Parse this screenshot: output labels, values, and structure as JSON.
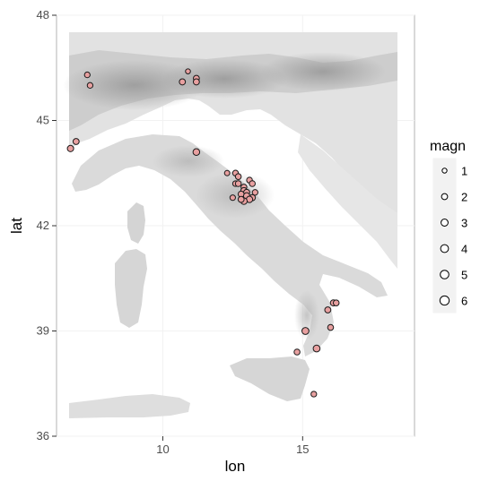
{
  "chart_data": {
    "type": "scatter",
    "title": "",
    "xlabel": "lon",
    "ylabel": "lat",
    "xlim": [
      6.2,
      19.0
    ],
    "ylim": [
      36.0,
      48.0
    ],
    "x_ticks": [
      10,
      15
    ],
    "y_ticks": [
      36,
      39,
      42,
      45,
      48
    ],
    "grid": true,
    "background": "shaded relief basemap of Italy",
    "point_stroke_color": "#1a1a1a",
    "point_fill_color": "#e8a0a0",
    "size_legend": {
      "title": "magn",
      "position": "right",
      "levels": [
        1,
        2,
        3,
        4,
        5,
        6
      ]
    },
    "points": [
      {
        "lon": 7.3,
        "lat": 46.3,
        "magn": 1.6
      },
      {
        "lon": 7.4,
        "lat": 46.0,
        "magn": 1.6
      },
      {
        "lon": 6.7,
        "lat": 44.2,
        "magn": 2.2
      },
      {
        "lon": 6.9,
        "lat": 44.4,
        "magn": 2.0
      },
      {
        "lon": 10.7,
        "lat": 46.1,
        "magn": 2.0
      },
      {
        "lon": 10.9,
        "lat": 46.4,
        "magn": 1.1
      },
      {
        "lon": 11.2,
        "lat": 46.2,
        "magn": 1.9
      },
      {
        "lon": 11.2,
        "lat": 46.1,
        "magn": 2.0
      },
      {
        "lon": 11.2,
        "lat": 44.1,
        "magn": 2.6
      },
      {
        "lon": 12.3,
        "lat": 43.5,
        "magn": 1.3
      },
      {
        "lon": 12.6,
        "lat": 43.5,
        "magn": 1.7
      },
      {
        "lon": 12.7,
        "lat": 43.4,
        "magn": 1.8
      },
      {
        "lon": 12.6,
        "lat": 43.2,
        "magn": 1.6
      },
      {
        "lon": 12.7,
        "lat": 43.2,
        "magn": 1.8
      },
      {
        "lon": 12.9,
        "lat": 43.1,
        "magn": 1.8
      },
      {
        "lon": 13.1,
        "lat": 43.3,
        "magn": 1.7
      },
      {
        "lon": 13.2,
        "lat": 43.2,
        "magn": 1.8
      },
      {
        "lon": 12.9,
        "lat": 43.0,
        "magn": 2.1
      },
      {
        "lon": 13.0,
        "lat": 42.95,
        "magn": 2.0
      },
      {
        "lon": 12.8,
        "lat": 42.9,
        "magn": 1.9
      },
      {
        "lon": 13.0,
        "lat": 42.85,
        "magn": 2.2
      },
      {
        "lon": 13.2,
        "lat": 42.8,
        "magn": 2.1
      },
      {
        "lon": 13.1,
        "lat": 42.75,
        "magn": 2.3
      },
      {
        "lon": 12.5,
        "lat": 42.8,
        "magn": 1.5
      },
      {
        "lon": 12.9,
        "lat": 42.7,
        "magn": 2.4
      },
      {
        "lon": 12.8,
        "lat": 42.75,
        "magn": 2.0
      },
      {
        "lon": 13.3,
        "lat": 42.95,
        "magn": 1.6
      },
      {
        "lon": 16.1,
        "lat": 39.8,
        "magn": 2.0
      },
      {
        "lon": 16.2,
        "lat": 39.8,
        "magn": 1.8
      },
      {
        "lon": 15.9,
        "lat": 39.6,
        "magn": 2.0
      },
      {
        "lon": 16.0,
        "lat": 39.1,
        "magn": 1.8
      },
      {
        "lon": 15.1,
        "lat": 39.0,
        "magn": 2.9
      },
      {
        "lon": 15.5,
        "lat": 38.5,
        "magn": 2.7
      },
      {
        "lon": 14.8,
        "lat": 38.4,
        "magn": 1.8
      },
      {
        "lon": 15.4,
        "lat": 37.2,
        "magn": 1.6
      }
    ]
  }
}
